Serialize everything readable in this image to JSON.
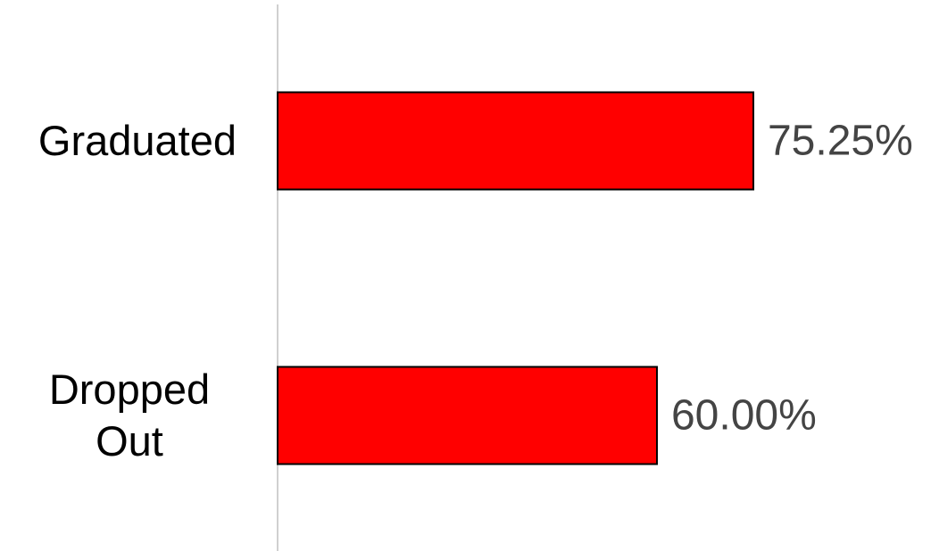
{
  "chart_data": {
    "type": "bar",
    "orientation": "horizontal",
    "categories": [
      "Graduated",
      "Dropped Out"
    ],
    "values": [
      75.25,
      60
    ],
    "value_labels": [
      "75.25%",
      "60.00%"
    ],
    "color": "#ff0000",
    "xlim": [
      0,
      100
    ]
  }
}
